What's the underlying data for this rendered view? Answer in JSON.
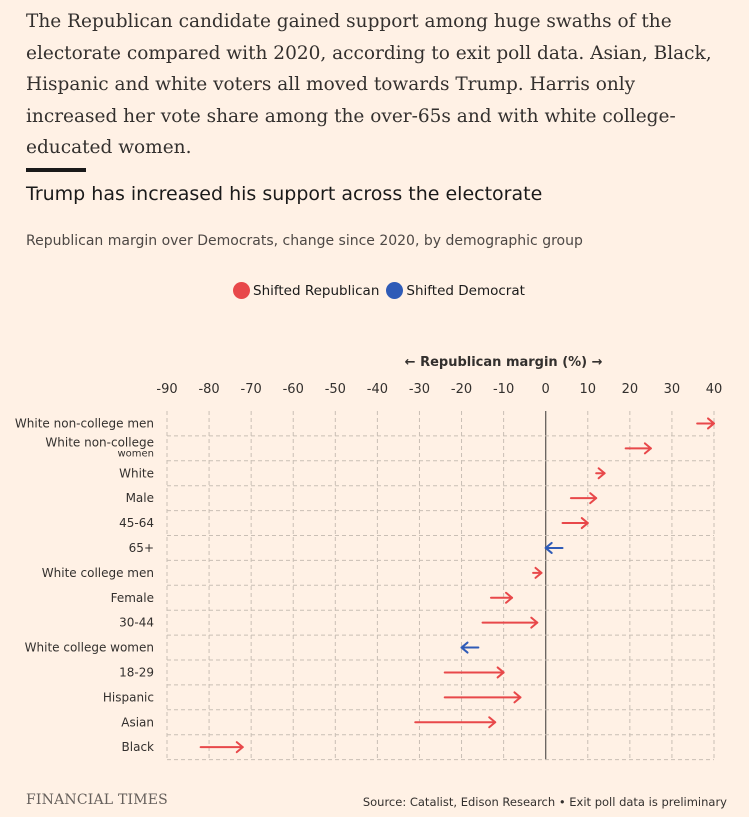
{
  "intro": "The Republican candidate gained support among huge swaths of the electorate compared with 2020, according to exit poll data. Asian, Black, Hispanic and white voters all moved towards Trump. Harris only increased her vote share among the over-65s and with white college-educated women.",
  "footer": {
    "logo": "FINANCIAL TIMES",
    "source": "Source: Catalist, Edison Research • Exit poll data is preliminary"
  },
  "colors": {
    "background": "#fff1e5",
    "republican": "#e8484a",
    "democrat": "#2f5bb7",
    "zero_line": "#66605c",
    "grid": "#c9bfb5"
  },
  "chart_data": {
    "type": "arrow",
    "title": "Trump has increased his support across the electorate",
    "subtitle": "Republican margin over Democrats, change since 2020, by demographic group",
    "axis_title": "← Republican margin (%) →",
    "xlim": [
      -90,
      40
    ],
    "x_ticks": [
      -90,
      -80,
      -70,
      -60,
      -50,
      -40,
      -30,
      -20,
      -10,
      0,
      10,
      20,
      30,
      40
    ],
    "grid": true,
    "legend": [
      {
        "label": "Shifted Republican",
        "color": "#e8484a"
      },
      {
        "label": "Shifted Democrat",
        "color": "#2f5bb7"
      }
    ],
    "legend_position": "top",
    "categories": [
      {
        "label": "White non-college men",
        "from_2020": 36,
        "to_2024": 40,
        "shift": "Republican"
      },
      {
        "label": "White non-college women",
        "from_2020": 19,
        "to_2024": 25,
        "shift": "Republican"
      },
      {
        "label": "White",
        "from_2020": 12,
        "to_2024": 14,
        "shift": "Republican"
      },
      {
        "label": "Male",
        "from_2020": 6,
        "to_2024": 12,
        "shift": "Republican"
      },
      {
        "label": "45-64",
        "from_2020": 4,
        "to_2024": 10,
        "shift": "Republican"
      },
      {
        "label": "65+",
        "from_2020": 4,
        "to_2024": 0,
        "shift": "Democrat"
      },
      {
        "label": "White college men",
        "from_2020": -3,
        "to_2024": -1,
        "shift": "Republican"
      },
      {
        "label": "Female",
        "from_2020": -13,
        "to_2024": -8,
        "shift": "Republican"
      },
      {
        "label": "30-44",
        "from_2020": -15,
        "to_2024": -2,
        "shift": "Republican"
      },
      {
        "label": "White college women",
        "from_2020": -16,
        "to_2024": -20,
        "shift": "Democrat"
      },
      {
        "label": "18-29",
        "from_2020": -24,
        "to_2024": -10,
        "shift": "Republican"
      },
      {
        "label": "Hispanic",
        "from_2020": -24,
        "to_2024": -6,
        "shift": "Republican"
      },
      {
        "label": "Asian",
        "from_2020": -31,
        "to_2024": -12,
        "shift": "Republican"
      },
      {
        "label": "Black",
        "from_2020": -82,
        "to_2024": -72,
        "shift": "Republican"
      }
    ]
  }
}
